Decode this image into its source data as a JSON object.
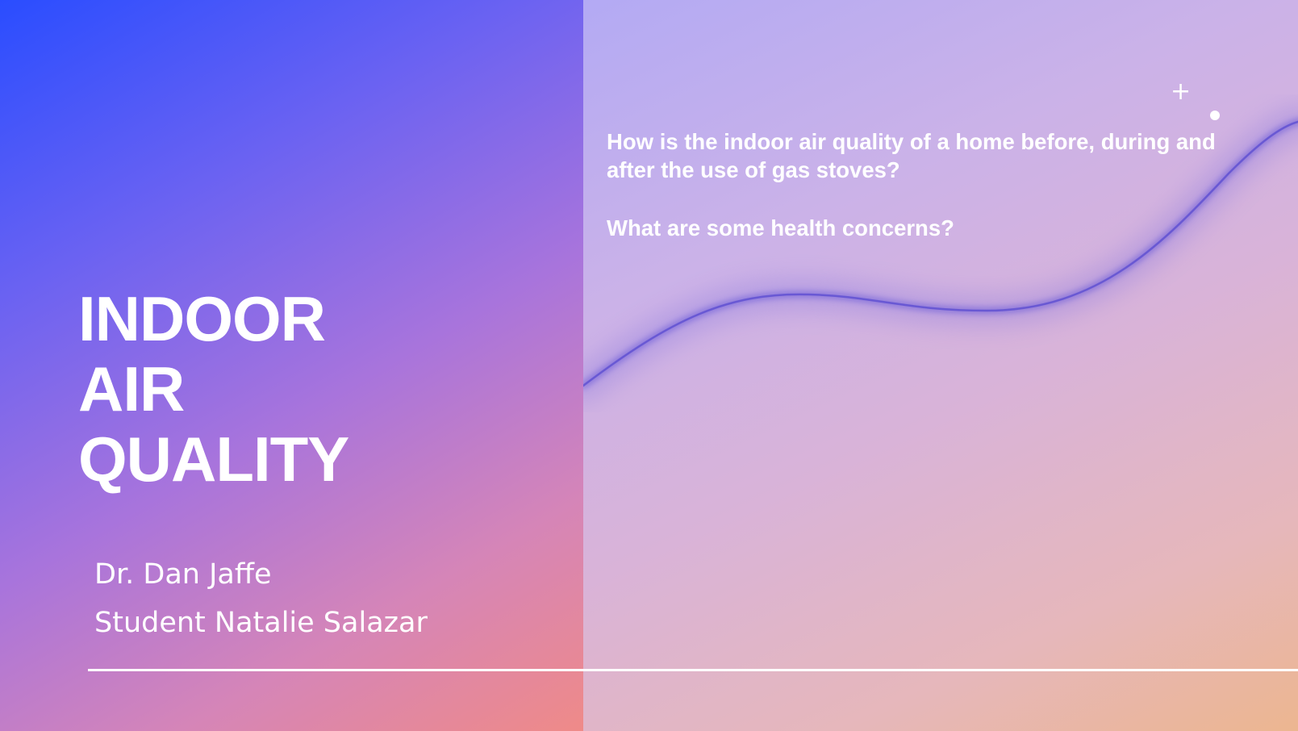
{
  "slide": {
    "title_lines": [
      "INDOOR",
      "AIR",
      "QUALITY"
    ],
    "authors": [
      "Dr. Dan Jaffe",
      "Student Natalie Salazar"
    ],
    "questions": [
      "How is the indoor air quality of a home before, during and after the use of gas stoves?",
      "What are some health concerns?"
    ],
    "decorations": {
      "plus_glyph": "+",
      "plus_icon": "plus-icon",
      "dot_icon": "dot-icon",
      "wave_icon": "wave-line"
    },
    "colors": {
      "text": "#ffffff",
      "wave": "#6a5ad8",
      "left_gradient_start": "#2a4dff",
      "left_gradient_end": "#ef8a88",
      "right_gradient_start": "#b3aaf4",
      "right_gradient_end": "#ecb690"
    }
  }
}
